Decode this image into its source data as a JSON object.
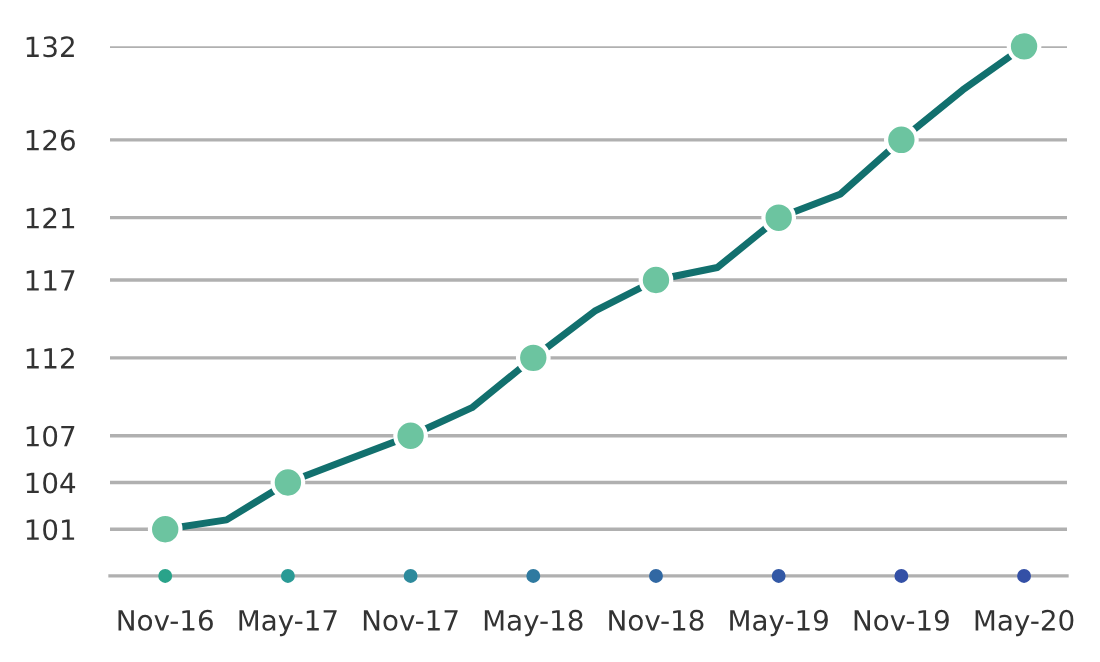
{
  "chart_data": {
    "type": "line",
    "categories": [
      "Nov-16",
      null,
      "May-17",
      null,
      "Nov-17",
      null,
      "May-18",
      null,
      "Nov-18",
      null,
      "May-19",
      null,
      "Nov-19",
      null,
      "May-20"
    ],
    "series": [
      {
        "color": "#12706e",
        "colors": [
          "#6cc4a0",
          null,
          "#6cc4a0",
          null,
          "#6cc4a0",
          null,
          "#6cc4a0",
          null,
          "#6cc4a0",
          null,
          "#6cc4a0",
          null,
          "#6cc4a0",
          null,
          "#6cc4a0"
        ],
        "values": [
          101,
          101.6,
          104,
          105.5,
          107,
          108.8,
          112,
          115,
          117,
          117.8,
          121,
          122.5,
          126,
          129.2,
          132
        ]
      }
    ],
    "ylim": [
      98,
      132
    ],
    "yticks": [
      101,
      104,
      107,
      112,
      117,
      121,
      126,
      132
    ],
    "grid": "y",
    "marker": "circle",
    "line_style": "solid"
  }
}
